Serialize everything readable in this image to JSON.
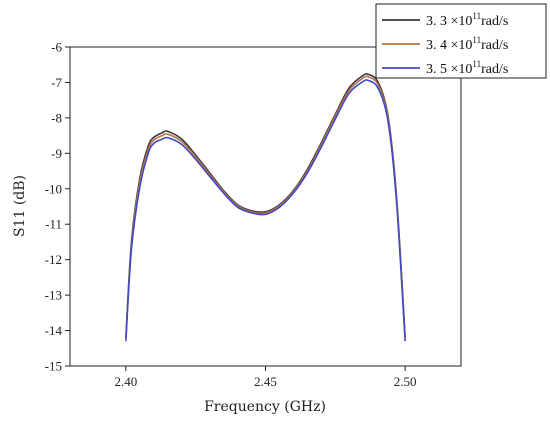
{
  "chart_data": {
    "type": "line",
    "title": "",
    "xlabel": "Frequency (GHz)",
    "ylabel": "S11 (dB)",
    "xlim": [
      2.38,
      2.52
    ],
    "ylim": [
      -15,
      -6
    ],
    "x_ticks": [
      2.4,
      2.45,
      2.5
    ],
    "x_tick_labels": [
      "2.40",
      "2.45",
      "2.50"
    ],
    "y_ticks": [
      -6,
      -7,
      -8,
      -9,
      -10,
      -11,
      -12,
      -13,
      -14,
      -15
    ],
    "y_tick_labels": [
      "-6",
      "-7",
      "-8",
      "-9",
      "-10",
      "-11",
      "-12",
      "-13",
      "-14",
      "-15"
    ],
    "grid": false,
    "legend_position": "top-right",
    "x": [
      2.4,
      2.402,
      2.405,
      2.408,
      2.41,
      2.413,
      2.415,
      2.42,
      2.425,
      2.43,
      2.435,
      2.44,
      2.445,
      2.45,
      2.455,
      2.46,
      2.465,
      2.47,
      2.475,
      2.48,
      2.485,
      2.487,
      2.49,
      2.493,
      2.495,
      2.497,
      2.499,
      2.5
    ],
    "series": [
      {
        "name": "3.3 ×10¹¹rad/s",
        "legend": {
          "coef": "3. 3",
          "base": "×10",
          "exp": "11",
          "unit": "rad/s"
        },
        "color": "#3a3a3a",
        "values": [
          -14.2,
          -11.5,
          -9.7,
          -8.8,
          -8.55,
          -8.42,
          -8.38,
          -8.6,
          -9.05,
          -9.55,
          -10.05,
          -10.45,
          -10.62,
          -10.65,
          -10.45,
          -10.05,
          -9.45,
          -8.7,
          -7.9,
          -7.15,
          -6.8,
          -6.78,
          -6.95,
          -7.6,
          -8.6,
          -10.3,
          -12.8,
          -14.2
        ]
      },
      {
        "name": "3.4 ×10¹¹rad/s",
        "legend": {
          "coef": "3. 4",
          "base": "×10",
          "exp": "11",
          "unit": "rad/s"
        },
        "color": "#b8734a",
        "values": [
          -14.2,
          -11.6,
          -9.8,
          -8.9,
          -8.63,
          -8.5,
          -8.46,
          -8.67,
          -9.1,
          -9.6,
          -10.08,
          -10.48,
          -10.65,
          -10.68,
          -10.48,
          -10.08,
          -9.5,
          -8.75,
          -7.95,
          -7.22,
          -6.87,
          -6.85,
          -7.02,
          -7.66,
          -8.66,
          -10.35,
          -12.85,
          -14.2
        ]
      },
      {
        "name": "3.5 ×10¹¹rad/s",
        "legend": {
          "coef": "3. 5",
          "base": "×10",
          "exp": "11",
          "unit": "rad/s"
        },
        "color": "#3f49c4",
        "values": [
          -14.3,
          -11.7,
          -9.95,
          -9.0,
          -8.72,
          -8.6,
          -8.56,
          -8.75,
          -9.17,
          -9.65,
          -10.12,
          -10.52,
          -10.68,
          -10.72,
          -10.52,
          -10.12,
          -9.55,
          -8.82,
          -8.03,
          -7.3,
          -6.97,
          -6.95,
          -7.12,
          -7.75,
          -8.75,
          -10.45,
          -12.95,
          -14.3
        ]
      }
    ]
  }
}
